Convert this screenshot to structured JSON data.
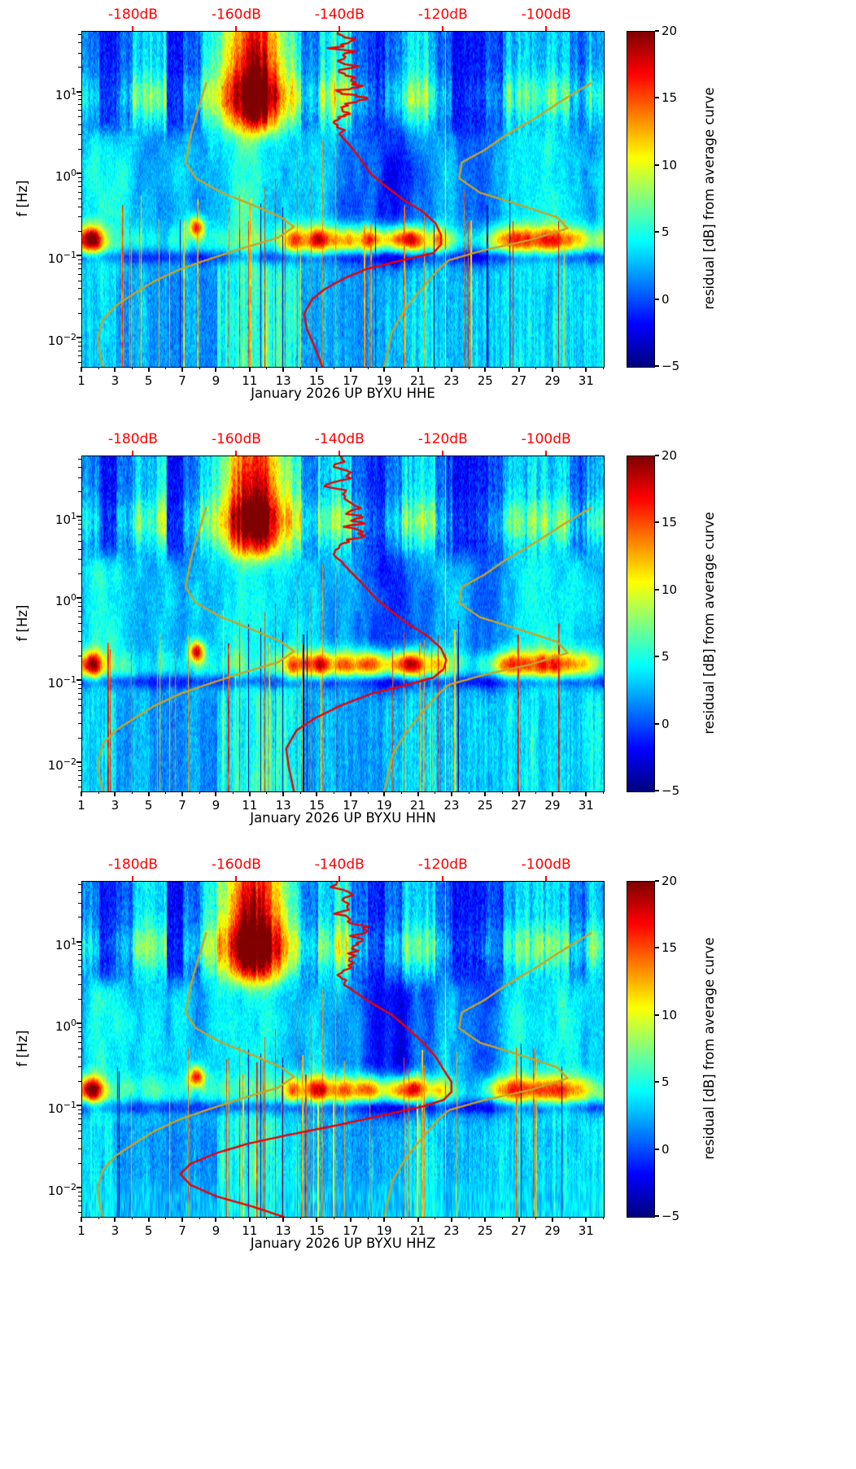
{
  "colors": {
    "background": "#ffffff",
    "axis": "#000000",
    "red_curve": "#ee0000",
    "top_axis_text": "#ff0000",
    "noise_model_curve": "#c9a227"
  },
  "colorbar": {
    "label": "residual [dB] from average curve",
    "ticks": [
      20,
      15,
      10,
      5,
      0,
      -5
    ],
    "min": -5,
    "max": 20,
    "colormap": "jet"
  },
  "axes": {
    "ylabel": "f [Hz]",
    "y_tick_exponents": [
      1,
      0,
      -1,
      -2
    ],
    "y_range_hz": [
      0.0045,
      55
    ],
    "x_ticks": [
      1,
      3,
      5,
      7,
      9,
      11,
      13,
      15,
      17,
      19,
      21,
      23,
      25,
      27,
      29,
      31
    ],
    "x_range_days": [
      1,
      32
    ],
    "top_axis_labels": [
      "-180dB",
      "-160dB",
      "-140dB",
      "-120dB",
      "-100dB"
    ],
    "top_axis_values": [
      -180,
      -160,
      -140,
      -120,
      -100
    ],
    "top_axis_range_db": [
      -190,
      -89
    ]
  },
  "noise_model_curves": {
    "low_db": [
      [
        13,
        -166
      ],
      [
        8,
        -167
      ],
      [
        5,
        -168
      ],
      [
        3,
        -169
      ],
      [
        2,
        -169.5
      ],
      [
        1.4,
        -170
      ],
      [
        0.9,
        -168
      ],
      [
        0.6,
        -163
      ],
      [
        0.4,
        -156
      ],
      [
        0.3,
        -151.5
      ],
      [
        0.23,
        -149
      ],
      [
        0.17,
        -152
      ],
      [
        0.12,
        -160
      ],
      [
        0.09,
        -166
      ],
      [
        0.07,
        -171
      ],
      [
        0.05,
        -176
      ],
      [
        0.035,
        -180
      ],
      [
        0.025,
        -183.5
      ],
      [
        0.017,
        -186
      ],
      [
        0.01,
        -187
      ],
      [
        0.006,
        -186.5
      ],
      [
        0.0045,
        -186
      ]
    ],
    "high_db": [
      [
        13,
        -91.5
      ],
      [
        8,
        -97
      ],
      [
        5,
        -102
      ],
      [
        3,
        -108
      ],
      [
        2,
        -112
      ],
      [
        1.4,
        -116.5
      ],
      [
        0.9,
        -117
      ],
      [
        0.6,
        -113
      ],
      [
        0.4,
        -104
      ],
      [
        0.3,
        -98
      ],
      [
        0.22,
        -96
      ],
      [
        0.16,
        -103
      ],
      [
        0.12,
        -112
      ],
      [
        0.09,
        -119
      ],
      [
        0.07,
        -121
      ],
      [
        0.05,
        -123
      ],
      [
        0.03,
        -126
      ],
      [
        0.02,
        -128
      ],
      [
        0.012,
        -130
      ],
      [
        0.0045,
        -131.5
      ]
    ]
  },
  "chart_data": [
    {
      "type": "heatmap",
      "channel": "HHE",
      "title": "January 2026 UP BYXU  HHE",
      "ylabel": "f [Hz]",
      "value_label": "residual [dB] from average curve",
      "value_range": [
        -5,
        20
      ],
      "x_range_days": [
        1,
        32
      ],
      "y_range_hz": [
        0.0045,
        55
      ],
      "top_axis_db_range": [
        -190,
        -89
      ],
      "mean_psd_curve_db": [
        [
          55,
          -140
        ],
        [
          40,
          -139
        ],
        [
          30,
          -140
        ],
        [
          22,
          -138
        ],
        [
          16,
          -139
        ],
        [
          12,
          -136
        ],
        [
          10,
          -138
        ],
        [
          8,
          -137
        ],
        [
          6,
          -139
        ],
        [
          5,
          -141
        ],
        [
          4,
          -140
        ],
        [
          3,
          -140
        ],
        [
          2.2,
          -138
        ],
        [
          1.5,
          -136
        ],
        [
          1,
          -134
        ],
        [
          0.7,
          -131
        ],
        [
          0.5,
          -128
        ],
        [
          0.35,
          -124
        ],
        [
          0.25,
          -121.5
        ],
        [
          0.18,
          -120.5
        ],
        [
          0.14,
          -120.5
        ],
        [
          0.11,
          -122
        ],
        [
          0.09,
          -128
        ],
        [
          0.07,
          -135
        ],
        [
          0.055,
          -139
        ],
        [
          0.04,
          -143
        ],
        [
          0.03,
          -145.5
        ],
        [
          0.02,
          -147
        ],
        [
          0.013,
          -146.5
        ],
        [
          0.008,
          -145
        ],
        [
          0.0045,
          -143.5
        ]
      ]
    },
    {
      "type": "heatmap",
      "channel": "HHN",
      "title": "January 2026 UP BYXU  HHN",
      "ylabel": "f [Hz]",
      "value_label": "residual [dB] from average curve",
      "value_range": [
        -5,
        20
      ],
      "x_range_days": [
        1,
        32
      ],
      "y_range_hz": [
        0.0045,
        55
      ],
      "top_axis_db_range": [
        -190,
        -89
      ],
      "mean_psd_curve_db": [
        [
          55,
          -141
        ],
        [
          35,
          -139
        ],
        [
          25,
          -141
        ],
        [
          18,
          -138
        ],
        [
          12,
          -136
        ],
        [
          9,
          -138
        ],
        [
          7,
          -137
        ],
        [
          5,
          -140
        ],
        [
          3.5,
          -141
        ],
        [
          2.5,
          -139
        ],
        [
          1.6,
          -136
        ],
        [
          1,
          -133
        ],
        [
          0.7,
          -130
        ],
        [
          0.5,
          -127
        ],
        [
          0.35,
          -123
        ],
        [
          0.25,
          -120.5
        ],
        [
          0.18,
          -119.5
        ],
        [
          0.14,
          -120
        ],
        [
          0.11,
          -122
        ],
        [
          0.09,
          -127
        ],
        [
          0.07,
          -134
        ],
        [
          0.05,
          -140
        ],
        [
          0.035,
          -145
        ],
        [
          0.025,
          -148.5
        ],
        [
          0.015,
          -150.5
        ],
        [
          0.009,
          -150
        ],
        [
          0.0045,
          -149
        ]
      ]
    },
    {
      "type": "heatmap",
      "channel": "HHZ",
      "title": "January 2026 UP BYXU  HHZ",
      "ylabel": "f [Hz]",
      "value_label": "residual [dB] from average curve",
      "value_range": [
        -5,
        20
      ],
      "x_range_days": [
        1,
        32
      ],
      "y_range_hz": [
        0.0045,
        55
      ],
      "top_axis_db_range": [
        -190,
        -89
      ],
      "mean_psd_curve_db": [
        [
          55,
          -139
        ],
        [
          35,
          -138
        ],
        [
          25,
          -140
        ],
        [
          18,
          -137
        ],
        [
          12,
          -135
        ],
        [
          9,
          -137
        ],
        [
          6,
          -139
        ],
        [
          4,
          -140
        ],
        [
          3,
          -139
        ],
        [
          2,
          -135
        ],
        [
          1.3,
          -130
        ],
        [
          0.9,
          -127
        ],
        [
          0.6,
          -124
        ],
        [
          0.4,
          -121.5
        ],
        [
          0.28,
          -120
        ],
        [
          0.2,
          -118.5
        ],
        [
          0.15,
          -118.5
        ],
        [
          0.12,
          -120
        ],
        [
          0.1,
          -124
        ],
        [
          0.08,
          -131
        ],
        [
          0.06,
          -140
        ],
        [
          0.045,
          -150
        ],
        [
          0.035,
          -158
        ],
        [
          0.027,
          -164
        ],
        [
          0.02,
          -169
        ],
        [
          0.015,
          -171
        ],
        [
          0.011,
          -169
        ],
        [
          0.008,
          -164
        ],
        [
          0.006,
          -157
        ],
        [
          0.0045,
          -151
        ]
      ]
    }
  ]
}
